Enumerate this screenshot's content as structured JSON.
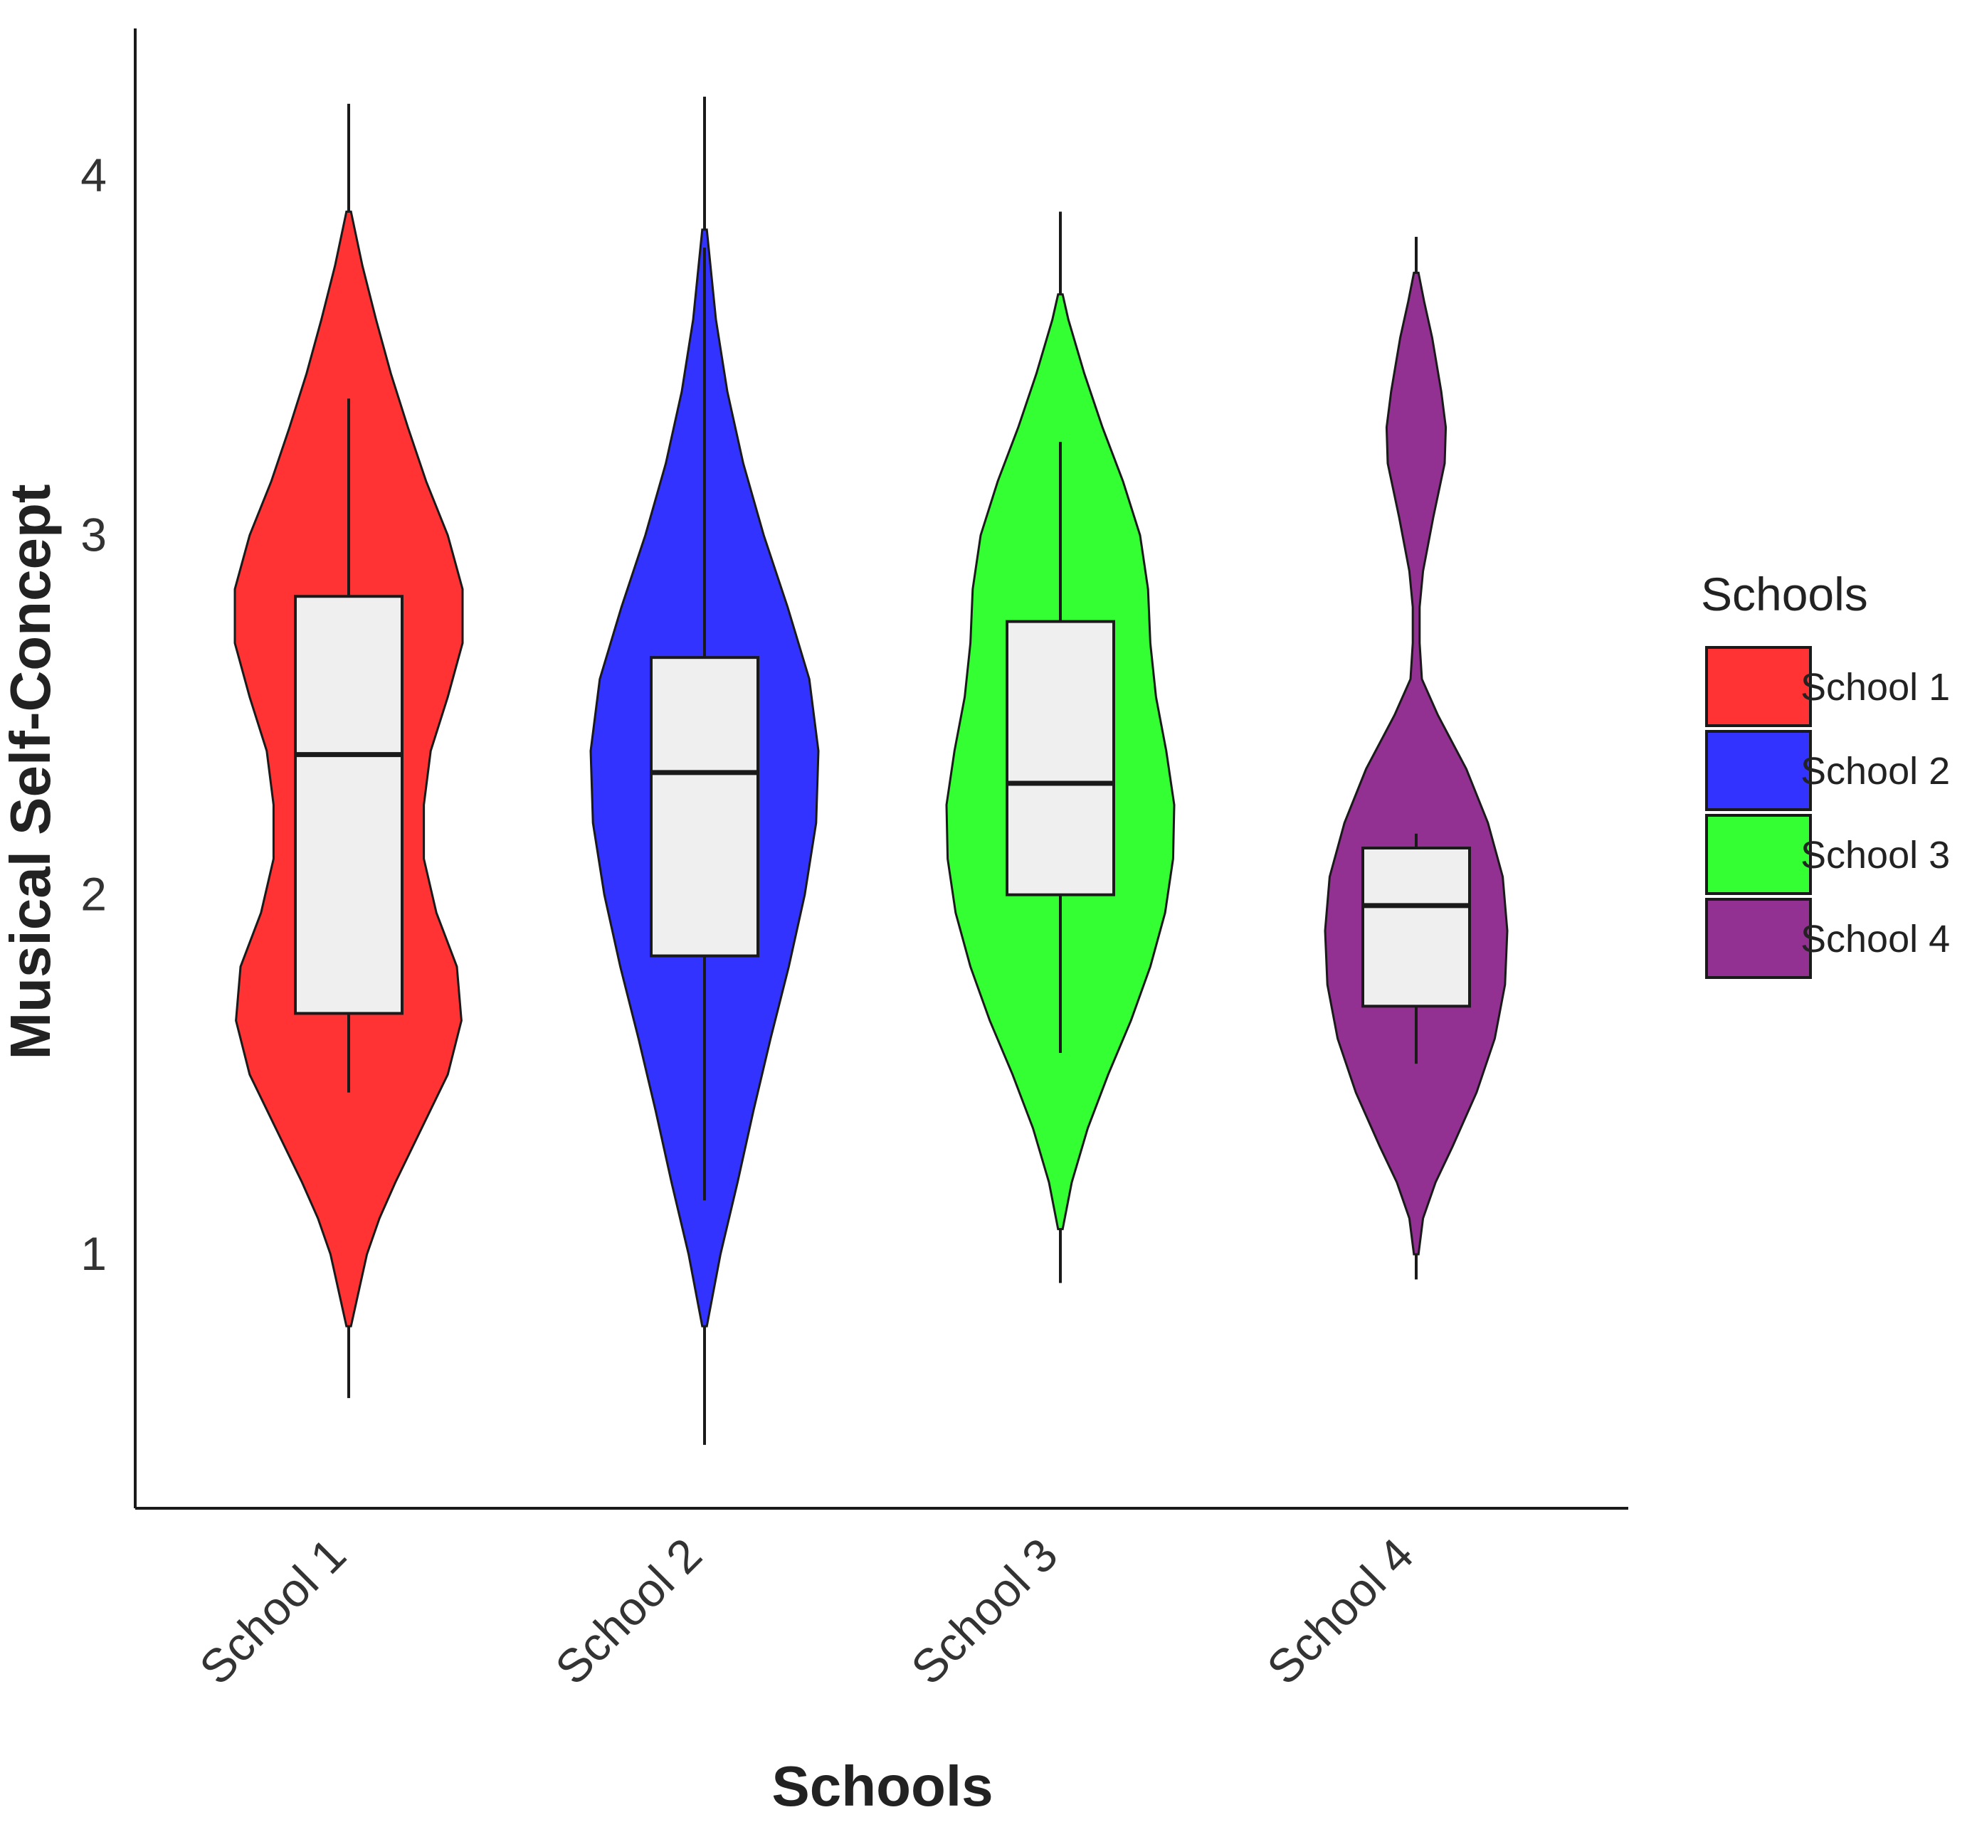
{
  "chart_data": {
    "type": "violin",
    "xlabel": "Schools",
    "ylabel": "Musical Self-Concept",
    "y_ticks": [
      1,
      2,
      3,
      4
    ],
    "y_tick_labels": [
      "1",
      "2",
      "3",
      "4"
    ],
    "categories": [
      "School 1",
      "School 2",
      "School 3",
      "School 4"
    ],
    "legend": {
      "title": "Schools",
      "position": "right",
      "entries": [
        "School 1",
        "School 2",
        "School 3",
        "School 4"
      ]
    },
    "series": [
      {
        "name": "School 1",
        "color": "#FF3333",
        "violin_range": [
          0.8,
          3.9
        ],
        "density_profile": [
          [
            0.8,
            0.02
          ],
          [
            0.9,
            0.09
          ],
          [
            1.0,
            0.16
          ],
          [
            1.1,
            0.27
          ],
          [
            1.2,
            0.41
          ],
          [
            1.35,
            0.64
          ],
          [
            1.5,
            0.87
          ],
          [
            1.65,
            0.99
          ],
          [
            1.8,
            0.95
          ],
          [
            1.95,
            0.77
          ],
          [
            2.1,
            0.66
          ],
          [
            2.25,
            0.66
          ],
          [
            2.4,
            0.72
          ],
          [
            2.55,
            0.87
          ],
          [
            2.7,
            1.0
          ],
          [
            2.85,
            1.0
          ],
          [
            3.0,
            0.87
          ],
          [
            3.15,
            0.68
          ],
          [
            3.3,
            0.52
          ],
          [
            3.45,
            0.37
          ],
          [
            3.6,
            0.24
          ],
          [
            3.75,
            0.12
          ],
          [
            3.9,
            0.02
          ]
        ],
        "box": {
          "whisker_low": 1.45,
          "q1": 1.67,
          "median": 2.39,
          "q3": 2.83,
          "whisker_high": 3.38
        },
        "line_range": [
          0.6,
          4.2
        ]
      },
      {
        "name": "School 2",
        "color": "#3333FF",
        "violin_range": [
          0.8,
          3.85
        ],
        "density_profile": [
          [
            0.8,
            0.02
          ],
          [
            1.0,
            0.14
          ],
          [
            1.2,
            0.29
          ],
          [
            1.4,
            0.43
          ],
          [
            1.6,
            0.58
          ],
          [
            1.8,
            0.74
          ],
          [
            2.0,
            0.88
          ],
          [
            2.2,
            0.98
          ],
          [
            2.4,
            1.0
          ],
          [
            2.6,
            0.92
          ],
          [
            2.8,
            0.73
          ],
          [
            3.0,
            0.52
          ],
          [
            3.2,
            0.34
          ],
          [
            3.4,
            0.2
          ],
          [
            3.6,
            0.1
          ],
          [
            3.85,
            0.02
          ]
        ],
        "box": {
          "whisker_low": 1.15,
          "q1": 1.83,
          "median": 2.34,
          "q3": 2.66,
          "whisker_high": 3.8
        },
        "line_range": [
          0.47,
          4.22
        ]
      },
      {
        "name": "School 3",
        "color": "#33FF33",
        "violin_range": [
          1.07,
          3.67
        ],
        "density_profile": [
          [
            1.07,
            0.02
          ],
          [
            1.2,
            0.1
          ],
          [
            1.35,
            0.24
          ],
          [
            1.5,
            0.42
          ],
          [
            1.65,
            0.62
          ],
          [
            1.8,
            0.79
          ],
          [
            1.95,
            0.92
          ],
          [
            2.1,
            0.99
          ],
          [
            2.25,
            1.0
          ],
          [
            2.4,
            0.93
          ],
          [
            2.55,
            0.84
          ],
          [
            2.7,
            0.79
          ],
          [
            2.85,
            0.77
          ],
          [
            3.0,
            0.7
          ],
          [
            3.15,
            0.55
          ],
          [
            3.3,
            0.37
          ],
          [
            3.45,
            0.21
          ],
          [
            3.6,
            0.07
          ],
          [
            3.67,
            0.02
          ]
        ],
        "box": {
          "whisker_low": 1.56,
          "q1": 2.0,
          "median": 2.31,
          "q3": 2.76,
          "whisker_high": 3.26
        },
        "line_range": [
          0.92,
          3.9
        ]
      },
      {
        "name": "School 4",
        "color": "#933193",
        "violin_range": [
          1.0,
          3.73
        ],
        "density_profile": [
          [
            1.0,
            0.02
          ],
          [
            1.1,
            0.06
          ],
          [
            1.2,
            0.17
          ],
          [
            1.3,
            0.32
          ],
          [
            1.45,
            0.53
          ],
          [
            1.6,
            0.69
          ],
          [
            1.75,
            0.78
          ],
          [
            1.9,
            0.8
          ],
          [
            2.05,
            0.76
          ],
          [
            2.2,
            0.63
          ],
          [
            2.35,
            0.44
          ],
          [
            2.5,
            0.19
          ],
          [
            2.6,
            0.05
          ],
          [
            2.7,
            0.03
          ],
          [
            2.8,
            0.03
          ],
          [
            2.9,
            0.06
          ],
          [
            3.05,
            0.15
          ],
          [
            3.2,
            0.25
          ],
          [
            3.3,
            0.26
          ],
          [
            3.4,
            0.22
          ],
          [
            3.55,
            0.14
          ],
          [
            3.65,
            0.07
          ],
          [
            3.73,
            0.02
          ]
        ],
        "box": {
          "whisker_low": 1.53,
          "q1": 1.69,
          "median": 1.97,
          "q3": 2.13,
          "whisker_high": 2.17
        },
        "line_range": [
          0.93,
          3.83
        ]
      }
    ]
  }
}
